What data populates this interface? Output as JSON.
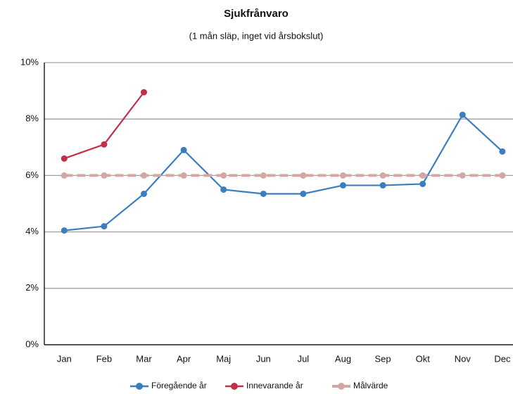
{
  "chart_data": {
    "type": "line",
    "title": "Sjukfrånvaro",
    "subtitle": "(1 mån släp, inget vid årsbokslut)",
    "categories": [
      "Jan",
      "Feb",
      "Mar",
      "Apr",
      "Maj",
      "Jun",
      "Jul",
      "Aug",
      "Sep",
      "Okt",
      "Nov",
      "Dec"
    ],
    "series": [
      {
        "name": "Föregående år",
        "color": "#3a7ebf",
        "values": [
          4.05,
          4.2,
          5.35,
          6.9,
          5.5,
          5.35,
          5.35,
          5.65,
          5.65,
          5.7,
          8.15,
          6.85
        ]
      },
      {
        "name": "Innevarande år",
        "color": "#c0304a",
        "values": [
          6.6,
          7.1,
          8.95,
          null,
          null,
          null,
          null,
          null,
          null,
          null,
          null,
          null
        ]
      },
      {
        "name": "Målvärde",
        "color": "#d3a8a4",
        "dashed": true,
        "values": [
          6,
          6,
          6,
          6,
          6,
          6,
          6,
          6,
          6,
          6,
          6,
          6
        ]
      }
    ],
    "ylim": [
      0,
      10
    ],
    "yticks": [
      {
        "value": 0,
        "label": "0%"
      },
      {
        "value": 2,
        "label": "2%"
      },
      {
        "value": 4,
        "label": "4%"
      },
      {
        "value": 6,
        "label": "6%"
      },
      {
        "value": 8,
        "label": "8%"
      },
      {
        "value": 10,
        "label": "10%"
      }
    ],
    "grid": true,
    "legend": "bottom"
  }
}
